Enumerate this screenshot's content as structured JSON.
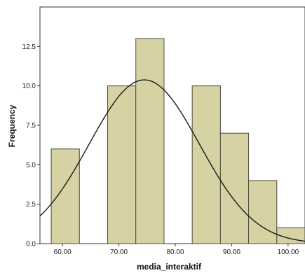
{
  "chart_data": {
    "type": "bar",
    "subtype": "histogram",
    "title": "",
    "xlabel": "media_interaktif",
    "ylabel": "Frequency",
    "bins": [
      {
        "start": 58.0,
        "end": 63.0,
        "value": 6
      },
      {
        "start": 68.0,
        "end": 73.0,
        "value": 10
      },
      {
        "start": 73.0,
        "end": 78.0,
        "value": 13
      },
      {
        "start": 78.0,
        "end": 83.0,
        "value": 0
      },
      {
        "start": 83.0,
        "end": 88.0,
        "value": 10
      },
      {
        "start": 88.0,
        "end": 93.0,
        "value": 7
      },
      {
        "start": 93.0,
        "end": 98.0,
        "value": 4
      },
      {
        "start": 98.0,
        "end": 103.0,
        "value": 1
      }
    ],
    "normal_curve": {
      "mean": 74.5,
      "sd": 9.8,
      "n": 51,
      "bin_width": 5,
      "color": "#1a1a1a"
    },
    "xlim": [
      56.0,
      103.0
    ],
    "ylim": [
      0,
      15
    ],
    "x_ticks": [
      {
        "value": 60,
        "label": "60.00"
      },
      {
        "value": 70,
        "label": "70.00"
      },
      {
        "value": 80,
        "label": "80.00"
      },
      {
        "value": 90,
        "label": "90.00"
      },
      {
        "value": 100,
        "label": "100.00"
      }
    ],
    "y_ticks": [
      {
        "value": 0,
        "label": "0.0"
      },
      {
        "value": 2.5,
        "label": "2.5"
      },
      {
        "value": 5,
        "label": "5.0"
      },
      {
        "value": 7.5,
        "label": "7.5"
      },
      {
        "value": 10,
        "label": "10.0"
      },
      {
        "value": 12.5,
        "label": "12.5"
      }
    ],
    "grid": false,
    "legend": "none",
    "bar_fill": "#d6d2a4",
    "bar_stroke": "#4a4a3a"
  }
}
